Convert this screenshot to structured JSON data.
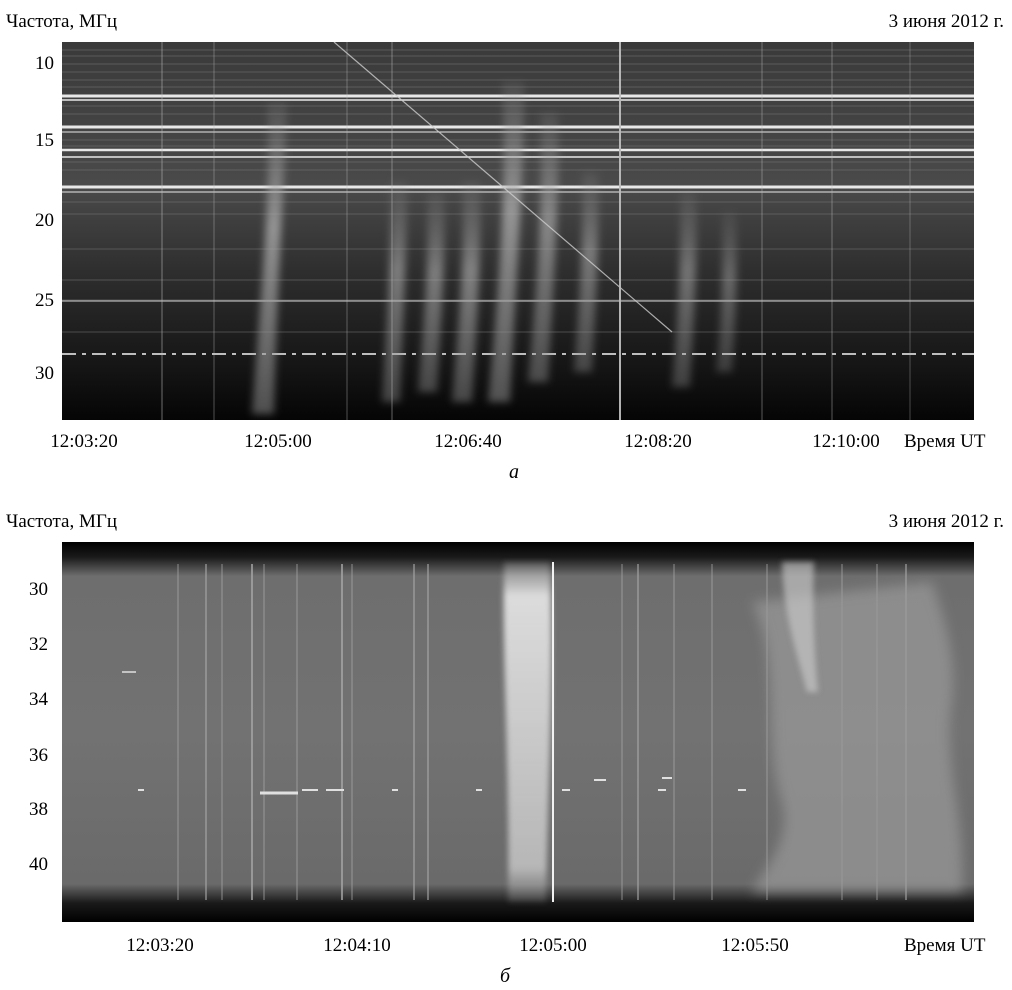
{
  "panel_a": {
    "ylabel": "Частота, МГц",
    "date": "3 июня 2012 г.",
    "xlabel": "Время UT",
    "caption": "а",
    "yticks": [
      "10",
      "15",
      "20",
      "25",
      "30"
    ],
    "xticks": [
      "12:03:20",
      "12:05:00",
      "12:06:40",
      "12:08:20",
      "12:10:00"
    ]
  },
  "panel_b": {
    "ylabel": "Частота, МГц",
    "date": "3 июня 2012 г.",
    "xlabel": "Время UT",
    "caption": "б",
    "yticks": [
      "30",
      "32",
      "34",
      "36",
      "38",
      "40"
    ],
    "xticks": [
      "12:03:20",
      "12:04:10",
      "12:05:00",
      "12:05:50"
    ]
  }
}
